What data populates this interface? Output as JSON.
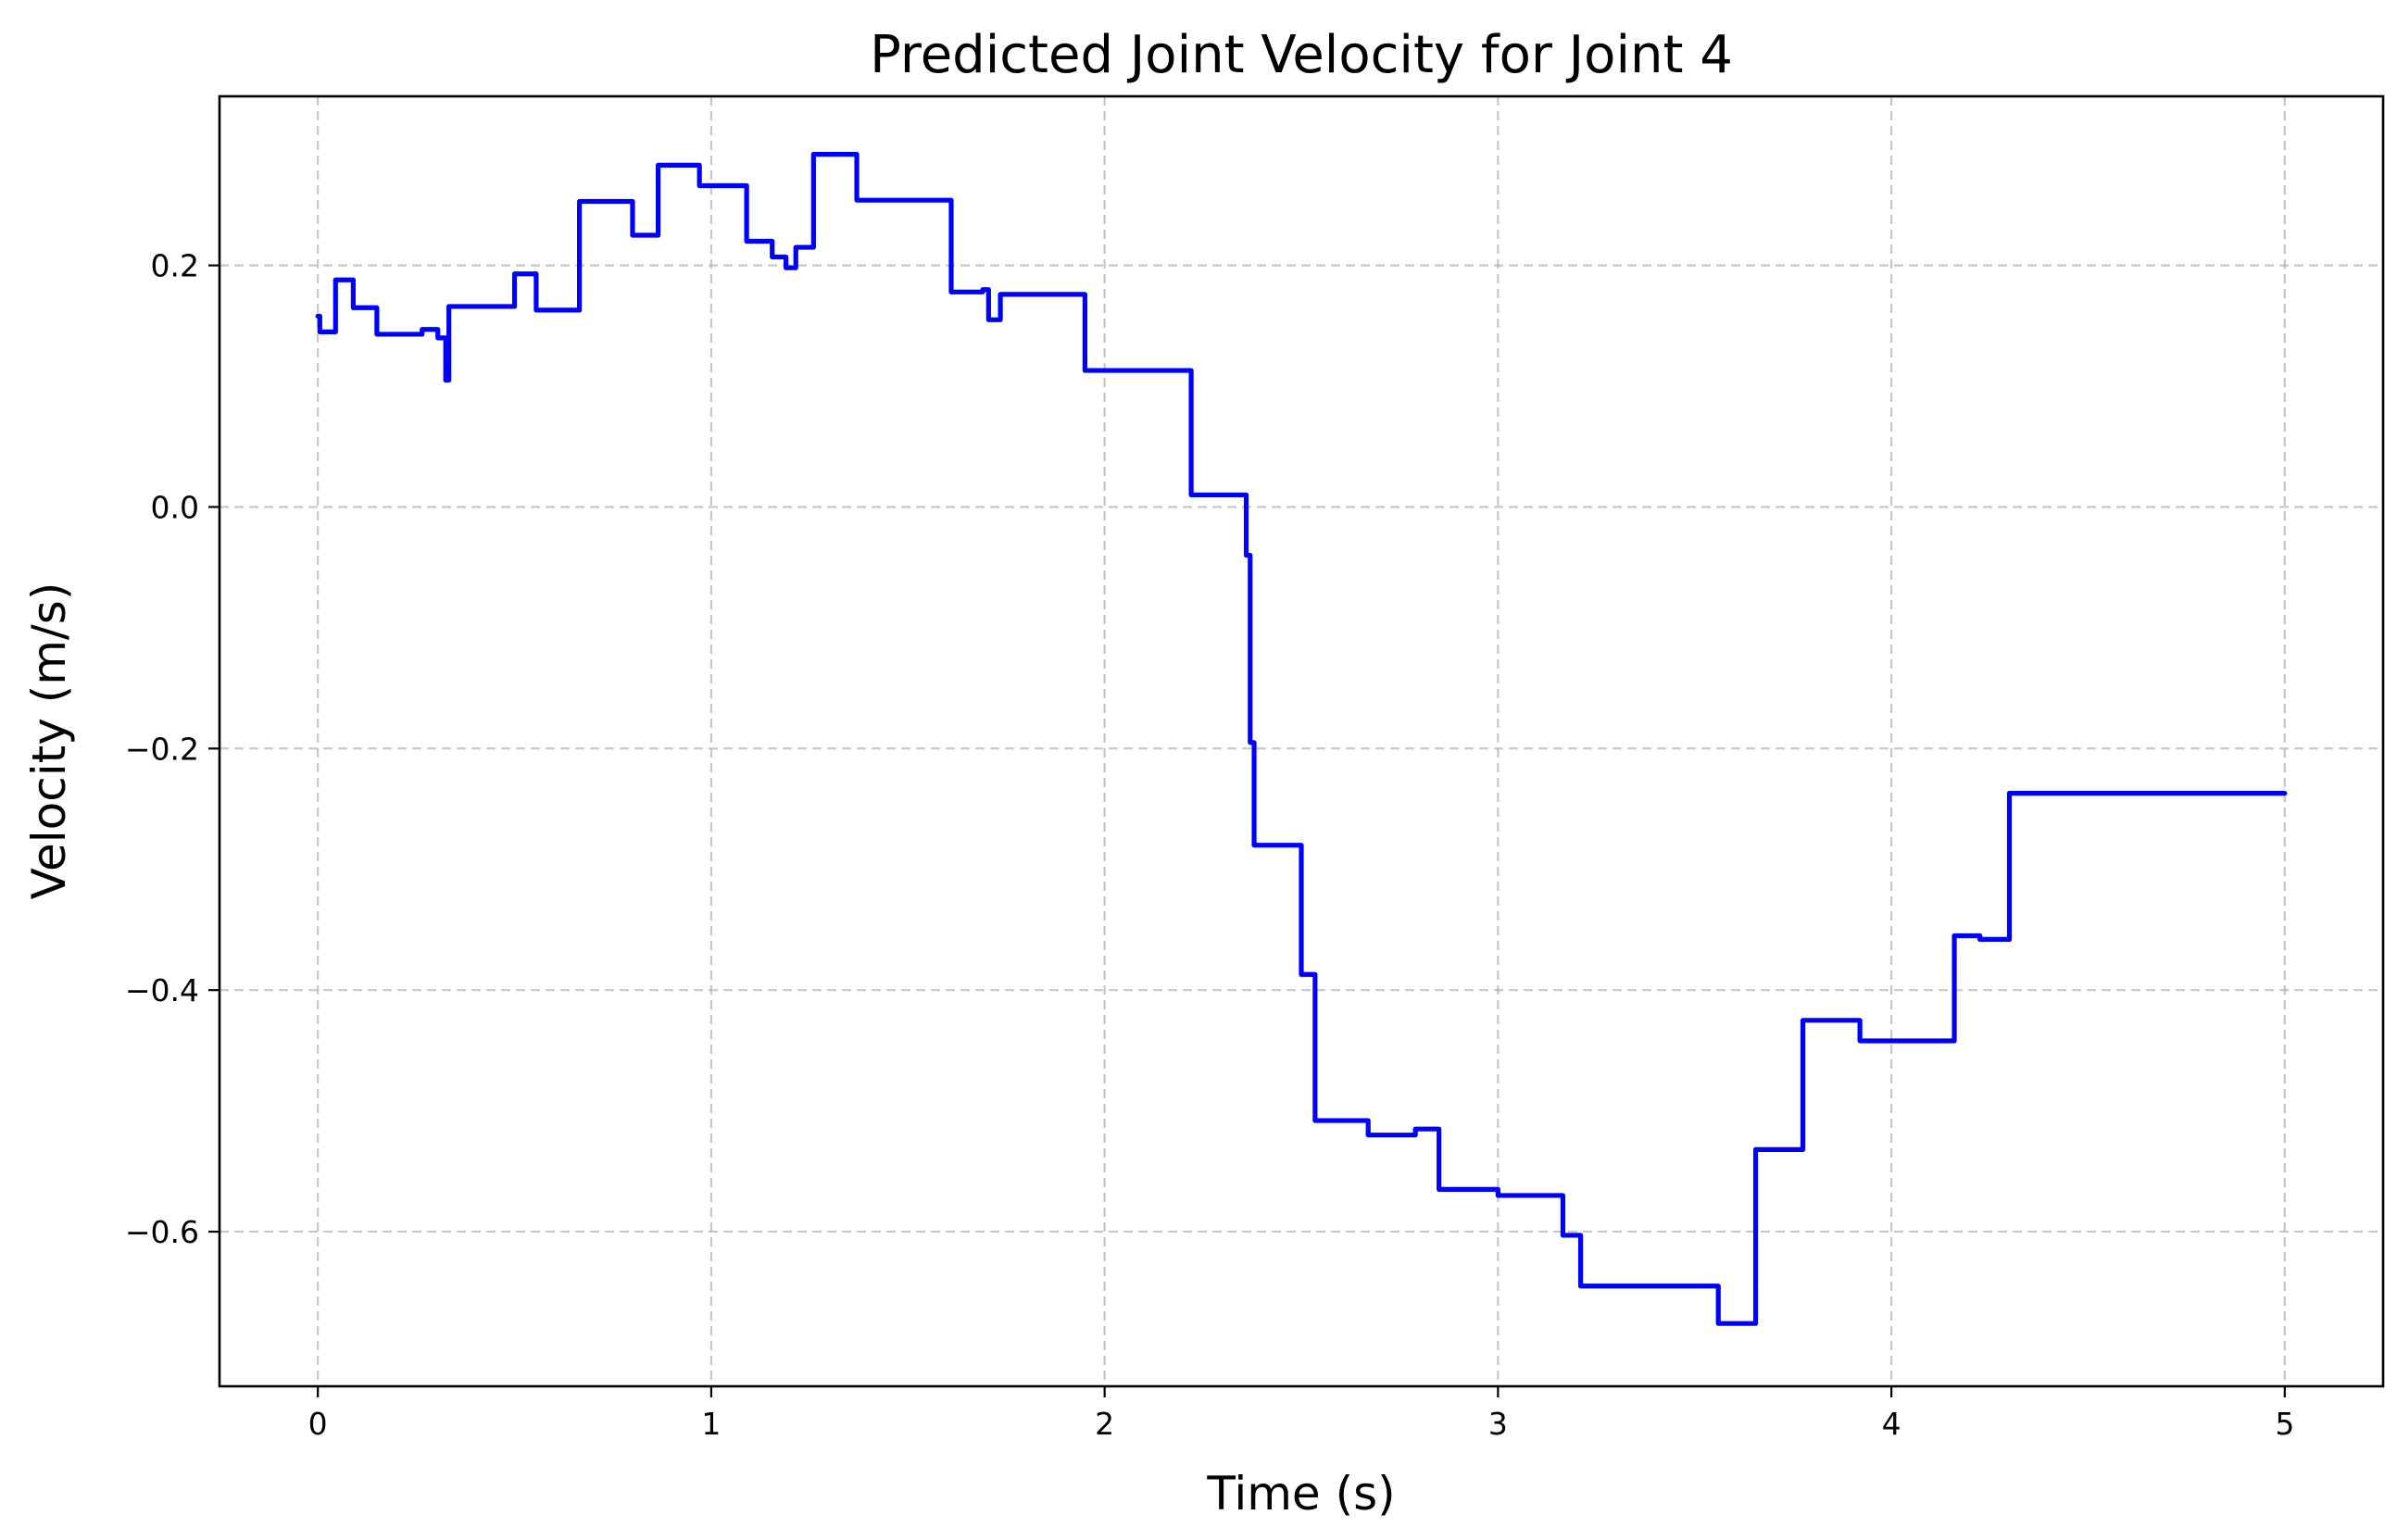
{
  "chart_data": {
    "type": "line",
    "title": "Predicted Joint Velocity for Joint 4",
    "xlabel": "Time (s)",
    "ylabel": "Velocity (m/s)",
    "xlim": [
      -0.25,
      5.25
    ],
    "ylim": [
      -0.728,
      0.34
    ],
    "xticks": [
      0,
      1,
      2,
      3,
      4,
      5
    ],
    "xtick_labels": [
      "0",
      "1",
      "2",
      "3",
      "4",
      "5"
    ],
    "yticks": [
      0.2,
      0.0,
      -0.2,
      -0.4,
      -0.6
    ],
    "ytick_labels": [
      "0.2",
      "0.0",
      "−0.2",
      "−0.4",
      "−0.6"
    ],
    "grid": true,
    "series_color": "#0000ff",
    "x": [
      0.0,
      0.005,
      0.005,
      0.045,
      0.045,
      0.06,
      0.06,
      0.09,
      0.09,
      0.15,
      0.15,
      0.265,
      0.265,
      0.305,
      0.305,
      0.325,
      0.325,
      0.333,
      0.333,
      0.5,
      0.5,
      0.555,
      0.555,
      0.665,
      0.665,
      0.8,
      0.8,
      0.865,
      0.865,
      0.97,
      0.97,
      1.09,
      1.09,
      1.155,
      1.155,
      1.19,
      1.19,
      1.215,
      1.215,
      1.26,
      1.26,
      1.37,
      1.37,
      1.61,
      1.61,
      1.69,
      1.69,
      1.705,
      1.705,
      1.735,
      1.735,
      1.95,
      1.95,
      2.22,
      2.22,
      2.36,
      2.36,
      2.37,
      2.37,
      2.38,
      2.38,
      2.385,
      2.385,
      2.5,
      2.5,
      2.535,
      2.535,
      2.67,
      2.67,
      2.79,
      2.79,
      2.85,
      2.85,
      3.0,
      3.0,
      3.165,
      3.165,
      3.21,
      3.21,
      3.56,
      3.56,
      3.655,
      3.655,
      3.775,
      3.775,
      3.92,
      3.92,
      4.16,
      4.16,
      4.225,
      4.225,
      4.3,
      4.3,
      5.0
    ],
    "y": [
      0.158,
      0.158,
      0.145,
      0.145,
      0.188,
      0.188,
      0.188,
      0.188,
      0.165,
      0.165,
      0.143,
      0.143,
      0.147,
      0.147,
      0.14,
      0.14,
      0.105,
      0.105,
      0.166,
      0.166,
      0.193,
      0.193,
      0.163,
      0.163,
      0.253,
      0.253,
      0.225,
      0.225,
      0.283,
      0.283,
      0.266,
      0.266,
      0.22,
      0.22,
      0.207,
      0.207,
      0.198,
      0.198,
      0.215,
      0.215,
      0.292,
      0.292,
      0.254,
      0.254,
      0.178,
      0.178,
      0.18,
      0.18,
      0.155,
      0.155,
      0.176,
      0.176,
      0.113,
      0.113,
      0.01,
      0.01,
      -0.04,
      -0.04,
      -0.195,
      -0.195,
      -0.28,
      -0.28,
      -0.28,
      -0.28,
      -0.387,
      -0.387,
      -0.508,
      -0.508,
      -0.52,
      -0.52,
      -0.515,
      -0.515,
      -0.565,
      -0.565,
      -0.57,
      -0.57,
      -0.603,
      -0.603,
      -0.645,
      -0.645,
      -0.676,
      -0.676,
      -0.532,
      -0.532,
      -0.425,
      -0.425,
      -0.442,
      -0.442,
      -0.355,
      -0.355,
      -0.358,
      -0.358,
      -0.237,
      -0.237
    ]
  }
}
